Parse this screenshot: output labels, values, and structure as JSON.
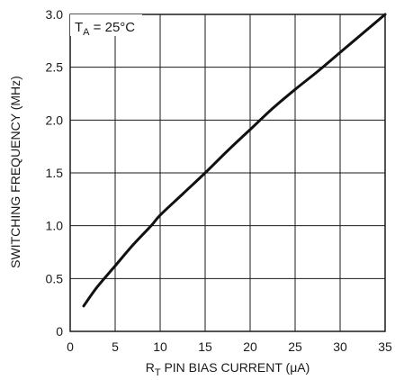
{
  "chart_data": {
    "type": "line",
    "title": "",
    "xlabel": {
      "prefix": "R",
      "subscript": "T",
      "suffix": " PIN BIAS CURRENT (μA)"
    },
    "ylabel": "SWITCHING FREQUENCY (MHz)",
    "xlim": [
      0,
      35
    ],
    "ylim": [
      0,
      3.0
    ],
    "xticks": [
      0,
      5,
      10,
      15,
      20,
      25,
      30,
      35
    ],
    "yticks": [
      0,
      0.5,
      1.0,
      1.5,
      2.0,
      2.5,
      3.0
    ],
    "xtick_labels": [
      "0",
      "5",
      "10",
      "15",
      "20",
      "25",
      "30",
      "35"
    ],
    "ytick_labels": [
      "0",
      "0.5",
      "1.0",
      "1.5",
      "2.0",
      "2.5",
      "3.0"
    ],
    "grid": true,
    "annotation": {
      "prefix": "T",
      "subscript": "A",
      "suffix": " = 25°C"
    },
    "line_color": "#111111",
    "grid_color": "#1a1a1a",
    "series": [
      {
        "x": [
          1.5,
          3,
          5,
          7,
          9,
          10,
          12.5,
          15,
          17.5,
          20,
          22.5,
          25,
          27.5,
          30,
          32.5,
          35
        ],
        "y": [
          0.24,
          0.42,
          0.62,
          0.82,
          1.0,
          1.1,
          1.3,
          1.5,
          1.71,
          1.91,
          2.11,
          2.29,
          2.46,
          2.64,
          2.82,
          3.0
        ]
      }
    ]
  }
}
